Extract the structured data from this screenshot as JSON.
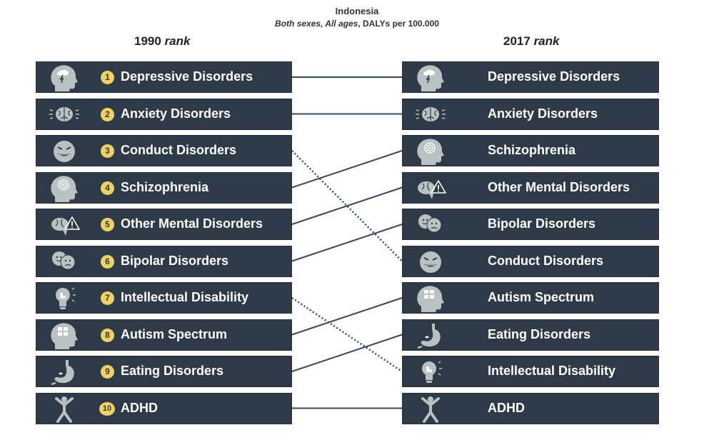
{
  "header": {
    "country": "Indonesia",
    "sub_italic": "Both sexes, All ages",
    "sub_rest": ", DALYs per 100.000"
  },
  "left_heading": {
    "year": "1990",
    "word": "rank"
  },
  "right_heading": {
    "year": "2017",
    "word": "rank"
  },
  "left_items": [
    {
      "rank": "1",
      "label": "Depressive Disorders",
      "icon": "head-storm-icon"
    },
    {
      "rank": "2",
      "label": "Anxiety Disorders",
      "icon": "brain-anxiety-icon"
    },
    {
      "rank": "3",
      "label": "Conduct Disorders",
      "icon": "angry-face-icon"
    },
    {
      "rank": "4",
      "label": "Schizophrenia",
      "icon": "head-spiral-icon"
    },
    {
      "rank": "5",
      "label": "Other Mental Disorders",
      "icon": "brain-warning-icon"
    },
    {
      "rank": "6",
      "label": "Bipolar Disorders",
      "icon": "bipolar-faces-icon"
    },
    {
      "rank": "7",
      "label": "Intellectual Disability",
      "icon": "lightbulb-puzzle-icon"
    },
    {
      "rank": "8",
      "label": "Autism Spectrum",
      "icon": "head-puzzle-icon"
    },
    {
      "rank": "9",
      "label": "Eating Disorders",
      "icon": "stomach-icon"
    },
    {
      "rank": "10",
      "label": "ADHD",
      "icon": "jumping-figure-icon"
    }
  ],
  "right_items": [
    {
      "label": "Depressive Disorders",
      "icon": "head-storm-icon"
    },
    {
      "label": "Anxiety Disorders",
      "icon": "brain-anxiety-icon"
    },
    {
      "label": "Schizophrenia",
      "icon": "head-spiral-icon"
    },
    {
      "label": "Other Mental Disorders",
      "icon": "brain-warning-icon"
    },
    {
      "label": "Bipolar Disorders",
      "icon": "bipolar-faces-icon"
    },
    {
      "label": "Conduct Disorders",
      "icon": "angry-face-icon"
    },
    {
      "label": "Autism Spectrum",
      "icon": "head-puzzle-icon"
    },
    {
      "label": "Eating Disorders",
      "icon": "stomach-icon"
    },
    {
      "label": "Intellectual Disability",
      "icon": "lightbulb-puzzle-icon"
    },
    {
      "label": "ADHD",
      "icon": "jumping-figure-icon"
    }
  ],
  "connections": [
    {
      "from_rank": 1,
      "to_rank": 1,
      "style": "solid"
    },
    {
      "from_rank": 2,
      "to_rank": 2,
      "style": "solid"
    },
    {
      "from_rank": 3,
      "to_rank": 6,
      "style": "dotted"
    },
    {
      "from_rank": 4,
      "to_rank": 3,
      "style": "solid"
    },
    {
      "from_rank": 5,
      "to_rank": 4,
      "style": "solid"
    },
    {
      "from_rank": 6,
      "to_rank": 5,
      "style": "solid"
    },
    {
      "from_rank": 7,
      "to_rank": 9,
      "style": "dotted"
    },
    {
      "from_rank": 8,
      "to_rank": 7,
      "style": "solid"
    },
    {
      "from_rank": 9,
      "to_rank": 8,
      "style": "solid"
    },
    {
      "from_rank": 10,
      "to_rank": 10,
      "style": "solid"
    }
  ],
  "colors": {
    "box": "#2e3a48",
    "badge": "#f0d264",
    "icon": "#b9c2c1",
    "line": "#36495e"
  }
}
